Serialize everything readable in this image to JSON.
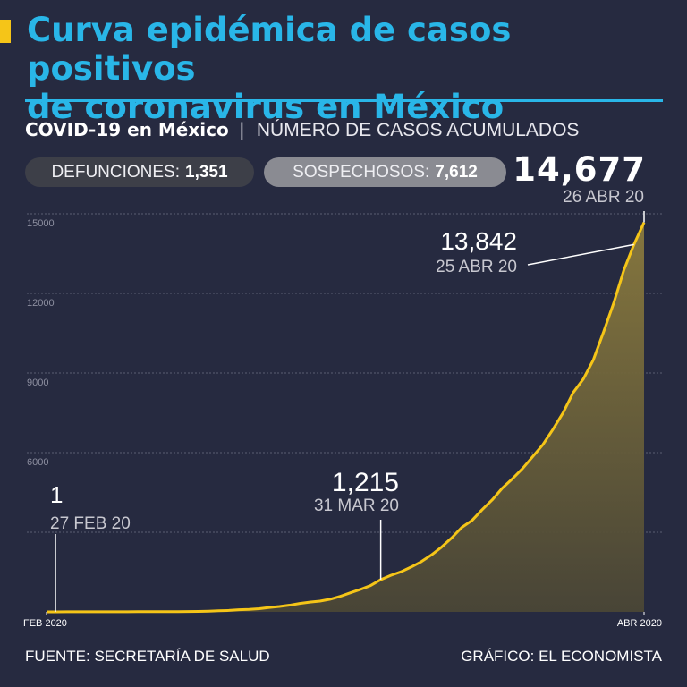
{
  "header": {
    "title_line1": "Curva epidémica de casos positivos",
    "title_line2": "de coronavirus en México",
    "subtitle_strong": "COVID-19 en México",
    "subtitle_sep": "|",
    "subtitle_light": "NÚMERO DE CASOS ACUMULADOS"
  },
  "stats": {
    "deaths_label": "DEFUNCIONES:",
    "deaths_value": "1,351",
    "suspects_label": "SOSPECHOSOS:",
    "suspects_value": "7,612",
    "total_value": "14,677",
    "total_date": "26 ABR 20"
  },
  "footer": {
    "source": "FUENTE: SECRETARÍA DE SALUD",
    "credit": "GRÁFICO: EL ECONOMISTA"
  },
  "colors": {
    "background": "#262a40",
    "title": "#29b6e8",
    "line": "#f5c518",
    "accent": "#f5c518"
  },
  "chart_data": {
    "type": "area",
    "x_unit": "days",
    "x_start_label": "FEB 2020",
    "x_end_label": "ABR 2020",
    "x": [
      "2020-02-27",
      "2020-02-28",
      "2020-02-29",
      "2020-03-01",
      "2020-03-02",
      "2020-03-03",
      "2020-03-04",
      "2020-03-05",
      "2020-03-06",
      "2020-03-07",
      "2020-03-08",
      "2020-03-09",
      "2020-03-10",
      "2020-03-11",
      "2020-03-12",
      "2020-03-13",
      "2020-03-14",
      "2020-03-15",
      "2020-03-16",
      "2020-03-17",
      "2020-03-18",
      "2020-03-19",
      "2020-03-20",
      "2020-03-21",
      "2020-03-22",
      "2020-03-23",
      "2020-03-24",
      "2020-03-25",
      "2020-03-26",
      "2020-03-27",
      "2020-03-28",
      "2020-03-29",
      "2020-03-30",
      "2020-03-31",
      "2020-04-01",
      "2020-04-02",
      "2020-04-03",
      "2020-04-04",
      "2020-04-05",
      "2020-04-06",
      "2020-04-07",
      "2020-04-08",
      "2020-04-09",
      "2020-04-10",
      "2020-04-11",
      "2020-04-12",
      "2020-04-13",
      "2020-04-14",
      "2020-04-15",
      "2020-04-16",
      "2020-04-17",
      "2020-04-18",
      "2020-04-19",
      "2020-04-20",
      "2020-04-21",
      "2020-04-22",
      "2020-04-23",
      "2020-04-24",
      "2020-04-25",
      "2020-04-26"
    ],
    "series": [
      {
        "values": [
          1,
          2,
          4,
          5,
          5,
          5,
          5,
          5,
          6,
          7,
          7,
          7,
          7,
          8,
          12,
          16,
          26,
          41,
          53,
          82,
          93,
          118,
          164,
          203,
          251,
          316,
          367,
          405,
          475,
          585,
          717,
          848,
          993,
          1215,
          1378,
          1510,
          1688,
          1890,
          2143,
          2439,
          2785,
          3181,
          3441,
          3844,
          4219,
          4661,
          5014,
          5399,
          5847,
          6297,
          6875,
          7497,
          8261,
          8772,
          9501,
          10544,
          11633,
          12872,
          13842,
          14677
        ]
      }
    ],
    "ylim": [
      0,
      15000
    ],
    "yticks": [
      15000,
      12000,
      9000,
      6000
    ],
    "grid": true,
    "annotations": [
      {
        "value": "1",
        "date": "27 FEB 20",
        "x": "2020-02-27"
      },
      {
        "value": "1,215",
        "date": "31 MAR 20",
        "x": "2020-03-31"
      },
      {
        "value": "13,842",
        "date": "25 ABR 20",
        "x": "2020-04-25"
      },
      {
        "value": "14,677",
        "date": "26 ABR 20",
        "x": "2020-04-26"
      }
    ]
  }
}
